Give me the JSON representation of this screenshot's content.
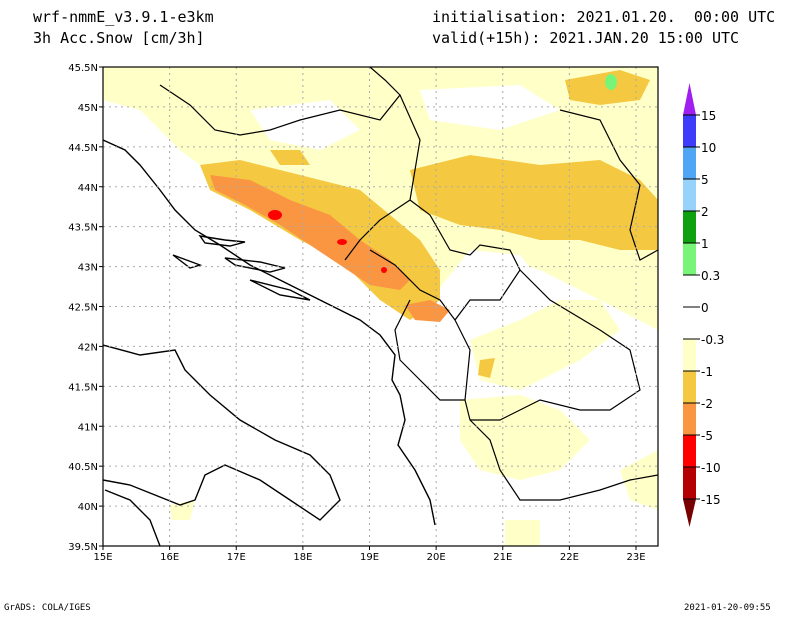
{
  "header": {
    "model": "wrf-nmmE_v3.9.1-e3km",
    "variable": "3h Acc.Snow [cm/3h]",
    "initialisation": "initialisation: 2021.01.20.  00:00 UTC",
    "valid": "valid(+15h): 2021.JAN.20 15:00 UTC"
  },
  "map": {
    "lon_range": [
      15,
      23.33
    ],
    "lat_range": [
      39.5,
      45.5
    ],
    "lon_labels": [
      {
        "lon": 15,
        "label": "15E"
      },
      {
        "lon": 16,
        "label": "16E"
      },
      {
        "lon": 17,
        "label": "17E"
      },
      {
        "lon": 18,
        "label": "18E"
      },
      {
        "lon": 19,
        "label": "19E"
      },
      {
        "lon": 20,
        "label": "20E"
      },
      {
        "lon": 21,
        "label": "21E"
      },
      {
        "lon": 22,
        "label": "22E"
      },
      {
        "lon": 23,
        "label": "23E"
      }
    ],
    "lat_labels": [
      {
        "lat": 39.5,
        "label": "39.5N"
      },
      {
        "lat": 40,
        "label": "40N"
      },
      {
        "lat": 40.5,
        "label": "40.5N"
      },
      {
        "lat": 41,
        "label": "41N"
      },
      {
        "lat": 41.5,
        "label": "41.5N"
      },
      {
        "lat": 42,
        "label": "42N"
      },
      {
        "lat": 42.5,
        "label": "42.5N"
      },
      {
        "lat": 43,
        "label": "43N"
      },
      {
        "lat": 43.5,
        "label": "43.5N"
      },
      {
        "lat": 44,
        "label": "44N"
      },
      {
        "lat": 44.5,
        "label": "44.5N"
      },
      {
        "lat": 45,
        "label": "45N"
      },
      {
        "lat": 45.5,
        "label": "45.5N"
      }
    ]
  },
  "colorbar": {
    "labels": [
      "15",
      "10",
      "5",
      "2",
      "1",
      "0.3",
      "0",
      "-0.3",
      "-1",
      "-2",
      "-5",
      "-10",
      "-15"
    ],
    "top_color": "#a01ef0",
    "colors": [
      "#3c3cfa",
      "#50a5f5",
      "#96d2fa",
      "#0fa00f",
      "#78f578",
      "#ffffff",
      "#ffffff",
      "#ffffc8",
      "#f5c841",
      "#fa9641",
      "#ff0000",
      "#b40000"
    ],
    "bottom_color": "#780000"
  },
  "footer": {
    "left": "GrADS: COLA/IGES",
    "right": "2021-01-20-09:55"
  }
}
